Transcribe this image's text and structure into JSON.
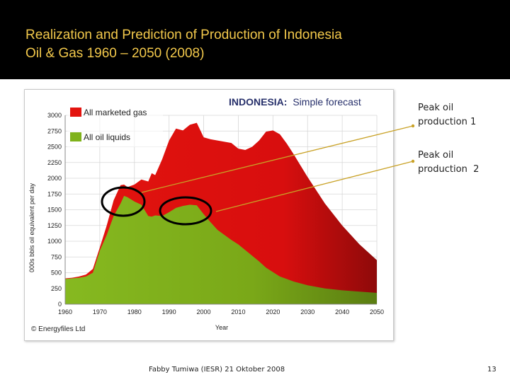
{
  "slide": {
    "title_line1": "Realization and Prediction of Production of Indonesia",
    "title_line2": "Oil & Gas 1960 – 2050 (2008)",
    "footer": "Fabby Tumiwa (IESR) 21 Oktober 2008",
    "page_number": "13"
  },
  "annotations": {
    "peak1_line1": "Peak oil",
    "peak1_line2": "production 1",
    "peak2_line1": "Peak oil",
    "peak2_line2": "production  2",
    "arrow_color": "#c9a227",
    "circle_color": "#000000"
  },
  "chart_data": {
    "type": "area",
    "title_bold": "INDONESIA:",
    "title_rest": "Simple forecast",
    "xlabel": "Year",
    "ylabel": "000s bbls oil equivalent per day",
    "copyright": "© Energyfiles Ltd",
    "xlim": [
      1960,
      2050
    ],
    "ylim": [
      0,
      3000
    ],
    "xticks": [
      "1960",
      "1970",
      "1980",
      "1990",
      "2000",
      "2010",
      "2020",
      "2030",
      "2040",
      "2050"
    ],
    "yticks": [
      "0",
      "250",
      "500",
      "750",
      "1000",
      "1250",
      "1500",
      "1750",
      "2000",
      "2250",
      "2500",
      "2750",
      "3000"
    ],
    "grid": true,
    "legend_position": "top-left",
    "x": [
      1960,
      1962,
      1964,
      1966,
      1968,
      1970,
      1972,
      1974,
      1976,
      1977,
      1978,
      1980,
      1982,
      1984,
      1985,
      1986,
      1988,
      1990,
      1992,
      1994,
      1996,
      1998,
      2000,
      2002,
      2004,
      2006,
      2008,
      2010,
      2012,
      2014,
      2016,
      2018,
      2020,
      2022,
      2024,
      2026,
      2028,
      2030,
      2035,
      2040,
      2045,
      2050
    ],
    "series": [
      {
        "name": "All marketed gas",
        "color": "#e3140f",
        "values": [
          410,
          420,
          440,
          470,
          560,
          900,
          1250,
          1650,
          1890,
          1900,
          1860,
          1900,
          1980,
          1950,
          2080,
          2050,
          2300,
          2600,
          2790,
          2760,
          2850,
          2880,
          2650,
          2620,
          2600,
          2580,
          2560,
          2470,
          2450,
          2500,
          2600,
          2740,
          2760,
          2700,
          2550,
          2380,
          2200,
          2020,
          1600,
          1250,
          950,
          700
        ]
      },
      {
        "name": "All oil liquids",
        "color": "#7fb21b",
        "values": [
          400,
          410,
          420,
          440,
          500,
          850,
          1100,
          1400,
          1600,
          1720,
          1700,
          1630,
          1580,
          1400,
          1390,
          1410,
          1400,
          1460,
          1530,
          1560,
          1580,
          1570,
          1430,
          1300,
          1180,
          1100,
          1020,
          950,
          860,
          770,
          680,
          580,
          510,
          440,
          400,
          360,
          330,
          300,
          250,
          220,
          200,
          180
        ]
      }
    ]
  }
}
